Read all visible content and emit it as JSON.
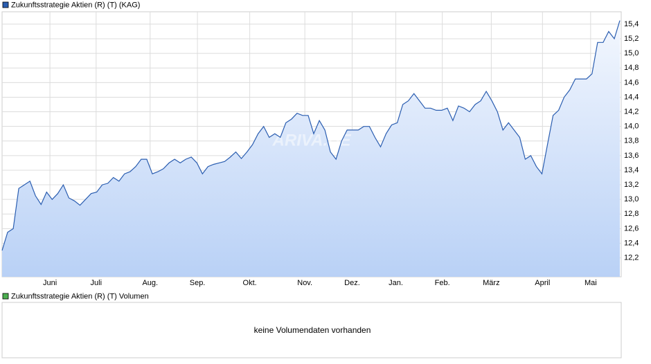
{
  "chart_data": {
    "type": "area",
    "series": [
      {
        "name": "Zukunftsstrategie Aktien (R) (T) (KAG)",
        "color": "#2a5db0",
        "values": [
          12.3,
          12.55,
          12.6,
          13.15,
          13.2,
          13.25,
          13.05,
          12.93,
          13.1,
          13.0,
          13.08,
          13.2,
          13.02,
          12.98,
          12.92,
          13.0,
          13.08,
          13.1,
          13.2,
          13.22,
          13.3,
          13.25,
          13.35,
          13.38,
          13.45,
          13.55,
          13.55,
          13.35,
          13.38,
          13.42,
          13.5,
          13.55,
          13.5,
          13.55,
          13.58,
          13.5,
          13.35,
          13.45,
          13.48,
          13.5,
          13.52,
          13.58,
          13.65,
          13.56,
          13.65,
          13.75,
          13.9,
          14.0,
          13.85,
          13.9,
          13.85,
          14.05,
          14.1,
          14.18,
          14.15,
          14.15,
          13.9,
          14.08,
          13.95,
          13.65,
          13.55,
          13.8,
          13.95,
          13.95,
          13.95,
          14.0,
          14.0,
          13.85,
          13.72,
          13.9,
          14.02,
          14.05,
          14.3,
          14.35,
          14.45,
          14.35,
          14.25,
          14.25,
          14.22,
          14.22,
          14.25,
          14.08,
          14.28,
          14.25,
          14.2,
          14.3,
          14.35,
          14.48,
          14.35,
          14.2,
          13.95,
          14.05,
          13.95,
          13.85,
          13.55,
          13.6,
          13.45,
          13.35,
          13.75,
          14.15,
          14.22,
          14.4,
          14.5,
          14.65,
          14.65,
          14.65,
          14.72,
          15.15,
          15.15,
          15.3,
          15.2,
          15.45
        ]
      }
    ],
    "xlim": [
      0,
      111
    ],
    "xticks": [
      {
        "value": 8.6,
        "label": "Juni"
      },
      {
        "value": 16.9,
        "label": "Juli"
      },
      {
        "value": 26.6,
        "label": "Aug."
      },
      {
        "value": 35.1,
        "label": "Sep."
      },
      {
        "value": 44.5,
        "label": "Okt."
      },
      {
        "value": 54.4,
        "label": "Nov."
      },
      {
        "value": 62.9,
        "label": "Dez."
      },
      {
        "value": 70.75,
        "label": "Jan."
      },
      {
        "value": 79.1,
        "label": "Feb."
      },
      {
        "value": 87.9,
        "label": "März"
      },
      {
        "value": 97.1,
        "label": "April"
      },
      {
        "value": 105.75,
        "label": "Mai"
      }
    ],
    "ylim": [
      11.94,
      15.57
    ],
    "yticks": [
      {
        "value": 12.2,
        "label": "12,2"
      },
      {
        "value": 12.4,
        "label": "12,4"
      },
      {
        "value": 12.6,
        "label": "12,6"
      },
      {
        "value": 12.8,
        "label": "12,8"
      },
      {
        "value": 13.0,
        "label": "13,0"
      },
      {
        "value": 13.2,
        "label": "13,2"
      },
      {
        "value": 13.4,
        "label": "13,4"
      },
      {
        "value": 13.6,
        "label": "13,6"
      },
      {
        "value": 13.8,
        "label": "13,8"
      },
      {
        "value": 14.0,
        "label": "14,0"
      },
      {
        "value": 14.2,
        "label": "14,2"
      },
      {
        "value": 14.4,
        "label": "14,4"
      },
      {
        "value": 14.6,
        "label": "14,6"
      },
      {
        "value": 14.8,
        "label": "14,8"
      },
      {
        "value": 15.0,
        "label": "15,0"
      },
      {
        "value": 15.2,
        "label": "15,2"
      },
      {
        "value": 15.4,
        "label": "15,4"
      }
    ],
    "grid": true,
    "watermark": "ARIVA.DE",
    "volume_legend": {
      "name": "Zukunftsstrategie Aktien (R) (T) Volumen",
      "color": "#4caf50"
    },
    "volume_message": "keine Volumendaten vorhanden"
  }
}
